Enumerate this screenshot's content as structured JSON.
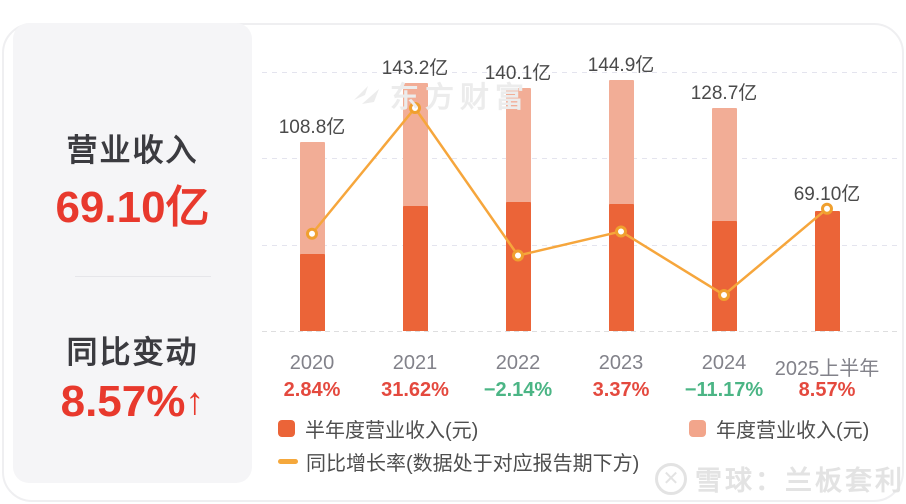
{
  "panel": {
    "revenue_label": "营业收入",
    "revenue_value": "69.10亿",
    "change_label": "同比变动",
    "change_value": "8.57%",
    "change_arrow": "↑"
  },
  "chart_data": {
    "type": "bar+line",
    "categories": [
      "2020",
      "2021",
      "2022",
      "2023",
      "2024",
      "2025上半年"
    ],
    "series": [
      {
        "name": "半年度营业收入(元)",
        "unit": "亿",
        "type": "bar",
        "values": [
          44.5,
          71.9,
          74.2,
          73.2,
          63.6,
          69.1
        ],
        "color": "#eb6438"
      },
      {
        "name": "年度营业收入(元)",
        "unit": "亿",
        "type": "bar",
        "values": [
          108.8,
          143.2,
          140.1,
          144.9,
          128.7,
          null
        ],
        "color": "#f2ad96"
      },
      {
        "name": "同比增长率(数据处于对应报告期下方)",
        "unit": "%",
        "type": "line",
        "values": [
          2.84,
          31.62,
          -2.14,
          3.37,
          -11.17,
          8.57
        ],
        "color": "#f6a63c"
      }
    ],
    "bar_labels": [
      "108.8亿",
      "143.2亿",
      "140.1亿",
      "144.9亿",
      "128.7亿",
      "69.10亿"
    ],
    "growth_labels": [
      "2.84%",
      "31.62%",
      "−2.14%",
      "3.37%",
      "−11.17%",
      "8.57%"
    ],
    "growth_positive_color": "#e4493e",
    "growth_negative_color": "#4bb585",
    "grid": true,
    "legend_position": "bottom"
  },
  "watermarks": {
    "brand": "东方财富",
    "source": "雪球：兰板套利"
  },
  "colors": {
    "accent_red": "#e8392d",
    "bar_half": "#eb6438",
    "bar_annual": "#f2ad96",
    "line": "#f6a63c"
  }
}
